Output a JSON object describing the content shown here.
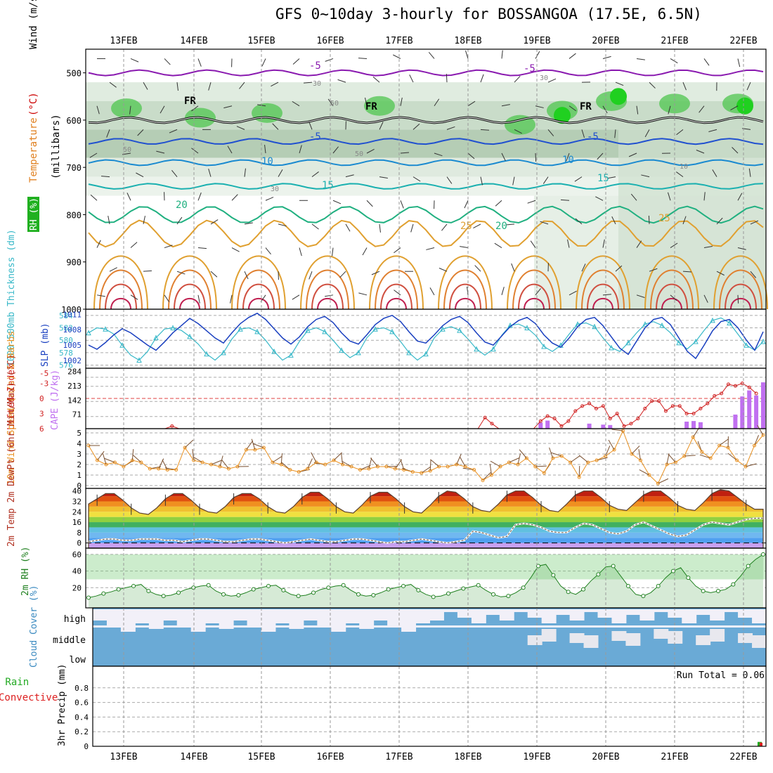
{
  "title": "GFS 0~10day 3-hourly for BOSSANGOA (17.5E, 6.5N)",
  "date_labels": [
    "13FEB",
    "14FEB",
    "15FEB",
    "16FEB",
    "17FEB",
    "18FEB",
    "19FEB",
    "20FEB",
    "21FEB",
    "22FEB"
  ],
  "run_total_text": "Run Total = 0.06",
  "chart_data": [
    {
      "type": "heatmap",
      "panel": "upper-air",
      "ylabel_parts": [
        {
          "text": "Wind (m/s)",
          "color": "#000000"
        },
        {
          "text": "(°C)",
          "color": "#cc0000"
        },
        {
          "text": "Temperature",
          "color": "#e08020"
        },
        {
          "text": "RH (%)",
          "color": "#22aa22"
        },
        {
          "text": "(millibars)",
          "color": "#000000"
        }
      ],
      "yticks": [
        "500",
        "600",
        "700",
        "800",
        "900",
        "1000"
      ],
      "ylim": [
        450,
        1000
      ],
      "contour_labels": [
        "-5",
        "-5",
        "FR",
        "FR",
        "FR",
        "-5",
        "-5",
        "10",
        "10",
        "15",
        "15",
        "20",
        "20",
        "25",
        "25",
        "10",
        "30",
        "30",
        "30",
        "50",
        "50",
        "50"
      ],
      "isotherms": [
        {
          "label": "-5",
          "color": "#8a1ab0",
          "pressure": 500
        },
        {
          "label": "FR",
          "color": "#000000",
          "pressure": 600
        },
        {
          "label": "-5",
          "color": "#2050d0",
          "pressure": 645
        },
        {
          "label": "10",
          "color": "#1a8ad0",
          "pressure": 690
        },
        {
          "label": "15",
          "color": "#1ab0b0",
          "pressure": 740
        },
        {
          "label": "20",
          "color": "#20b080",
          "pressure": 800
        },
        {
          "label": "25",
          "color": "#e0a030",
          "pressure": 840
        }
      ]
    },
    {
      "type": "line",
      "panel": "thickness-slp",
      "ylabel_left": "1000-500mb Thickness (dm)",
      "ylabel_right": "SLP (mb)",
      "yticks_thickness": [
        "584",
        "582",
        "580",
        "578",
        "576"
      ],
      "yticks_slp": [
        "1011",
        "1008",
        "1005",
        "1002"
      ],
      "series": [
        {
          "name": "1000-500mb Thickness (dm)",
          "color": "#38b8c8",
          "values": [
            581.2,
            582.0,
            581.8,
            581.0,
            579.2,
            577.6,
            576.8,
            578.2,
            580.4,
            581.8,
            582.0,
            581.6,
            580.6,
            579.4,
            577.8,
            576.8,
            578.0,
            580.2,
            581.8,
            582.0,
            581.4,
            580.0,
            578.2,
            576.8,
            577.6,
            579.8,
            581.6,
            582.0,
            581.4,
            580.0,
            578.4,
            577.2,
            578.0,
            580.4,
            581.8,
            582.0,
            581.4,
            579.8,
            578.0,
            576.8,
            577.8,
            580.4,
            581.8,
            582.2,
            581.6,
            580.2,
            578.6,
            577.6,
            578.6,
            580.8,
            582.4,
            582.6,
            582.0,
            580.8,
            579.0,
            578.2,
            579.2,
            581.0,
            582.6,
            582.8,
            582.2,
            580.4,
            578.8,
            578.2,
            579.6,
            581.2,
            582.6,
            583.0,
            582.4,
            581.2,
            579.6,
            578.6,
            579.8,
            581.6,
            583.2,
            583.6,
            582.8,
            581.0,
            579.2,
            578.4,
            579.8
          ]
        },
        {
          "name": "SLP (mb)",
          "color": "#1a40c0",
          "values": [
            1005.0,
            1004.2,
            1005.5,
            1007.0,
            1008.2,
            1007.4,
            1006.2,
            1005.0,
            1004.0,
            1005.6,
            1007.4,
            1008.8,
            1010.2,
            1009.2,
            1007.8,
            1006.4,
            1005.4,
            1007.4,
            1009.2,
            1010.4,
            1011.2,
            1010.0,
            1008.2,
            1006.4,
            1005.2,
            1006.6,
            1008.6,
            1010.0,
            1010.6,
            1009.4,
            1007.4,
            1005.8,
            1005.2,
            1007.0,
            1009.0,
            1010.2,
            1010.8,
            1009.6,
            1007.6,
            1005.8,
            1005.4,
            1007.0,
            1008.8,
            1010.0,
            1010.6,
            1009.4,
            1007.4,
            1005.6,
            1005.0,
            1006.8,
            1008.6,
            1009.8,
            1010.4,
            1009.2,
            1007.0,
            1005.4,
            1004.6,
            1006.4,
            1008.6,
            1010.0,
            1010.4,
            1008.8,
            1006.6,
            1004.4,
            1003.2,
            1005.8,
            1008.4,
            1010.0,
            1010.4,
            1009.0,
            1006.4,
            1003.8,
            1002.4,
            1005.0,
            1007.8,
            1009.6,
            1010.0,
            1008.4,
            1006.0,
            1004.0,
            1007.6
          ]
        }
      ]
    },
    {
      "type": "bar",
      "panel": "cape-li",
      "ylabel_left": "Lifted Index",
      "ylabel_right": "CAPE (J/kg)",
      "yticks_li": [
        "-5",
        "-3",
        "0",
        "3",
        "6"
      ],
      "yticks_cape": [
        "284",
        "213",
        "142",
        "71"
      ],
      "series": [
        {
          "name": "CAPE (J/kg)",
          "color": "#c070f0",
          "values": [
            0,
            0,
            0,
            0,
            0,
            0,
            0,
            0,
            0,
            0,
            0,
            0,
            0,
            0,
            0,
            0,
            0,
            0,
            0,
            0,
            0,
            0,
            0,
            0,
            0,
            0,
            0,
            0,
            0,
            0,
            0,
            0,
            0,
            0,
            0,
            0,
            0,
            0,
            0,
            0,
            0,
            0,
            0,
            0,
            0,
            0,
            0,
            0,
            0,
            0,
            0,
            0,
            0,
            0,
            0,
            0,
            0,
            0,
            0,
            0,
            0,
            0,
            0,
            0,
            0,
            30,
            40,
            0,
            0,
            0,
            0,
            0,
            25,
            0,
            20,
            18,
            0,
            0,
            0,
            0,
            0,
            0,
            0,
            0,
            0,
            0,
            35,
            38,
            32,
            0,
            0,
            0,
            0,
            70,
            160,
            190,
            165,
            230
          ]
        },
        {
          "name": "Lifted Index",
          "color": "#d02020",
          "values": [
            6,
            6,
            6,
            6,
            6,
            6,
            6,
            6,
            6,
            6,
            6,
            6,
            5.5,
            6,
            6,
            6,
            6,
            6,
            6,
            6,
            6,
            6,
            6,
            6,
            6,
            6,
            6,
            6,
            6,
            6,
            6,
            6,
            6,
            6,
            6,
            6,
            6,
            6,
            6,
            6,
            6,
            6,
            6,
            6,
            6,
            6,
            6,
            6,
            6,
            6,
            6,
            6,
            6,
            6,
            6,
            6,
            6,
            3.8,
            5,
            6,
            6,
            6,
            6,
            6,
            6,
            4.5,
            3.5,
            4,
            5.5,
            4.5,
            2.5,
            1.5,
            1.0,
            2.0,
            1.5,
            4.0,
            3.0,
            5.5,
            5,
            4,
            2,
            0.5,
            0.5,
            2.5,
            1.5,
            1.5,
            3,
            3,
            2,
            1,
            -0.5,
            -1,
            -2.8,
            -2.5,
            -3,
            -2.2,
            -1
          ]
        }
      ]
    },
    {
      "type": "line",
      "panel": "wind10m",
      "ylabel": "10m Wind Speed (m/s) & Barbs",
      "yticks": [
        "5",
        "4",
        "3",
        "2",
        "1",
        "0"
      ],
      "ylim": [
        0,
        5
      ],
      "series": [
        {
          "name": "10m Wind Speed",
          "color": "#e89020",
          "values": [
            3.8,
            2.4,
            2.0,
            2.2,
            1.8,
            2.4,
            2.2,
            1.6,
            1.6,
            1.5,
            1.5,
            3.6,
            2.4,
            2.2,
            2.0,
            1.8,
            1.6,
            1.8,
            3.4,
            3.4,
            3.6,
            2.2,
            2.0,
            1.5,
            1.3,
            1.6,
            2.2,
            2.0,
            2.4,
            2.0,
            1.8,
            1.5,
            1.6,
            1.8,
            1.8,
            1.6,
            1.5,
            1.3,
            1.2,
            1.4,
            1.8,
            1.8,
            2.0,
            1.8,
            1.5,
            0.5,
            1.0,
            1.8,
            2.2,
            2.0,
            2.6,
            1.8,
            1.2,
            2.6,
            2.8,
            2.2,
            0.8,
            2.2,
            2.4,
            2.8,
            3.4,
            5.2,
            3.0,
            2.4,
            1.0,
            0.2,
            2.0,
            2.2,
            2.8,
            4.6,
            3.2,
            2.6,
            3.8,
            3.6,
            2.4,
            1.8,
            3.8,
            4.8
          ]
        }
      ]
    },
    {
      "type": "area",
      "panel": "temp2m",
      "ylabel": "2m Temp 2m DewPt (6hr Min/Max) (°C)",
      "yticks": [
        "40",
        "32",
        "24",
        "16",
        "8",
        "0"
      ],
      "ylim": [
        -4,
        42
      ],
      "series": [
        {
          "name": "2m Temp",
          "color": "#c02020",
          "values": [
            30,
            34,
            38,
            38,
            33,
            27,
            23,
            22,
            27,
            34,
            38,
            38,
            33,
            27,
            24,
            23,
            28,
            35,
            38,
            38,
            34,
            28,
            24,
            23,
            28,
            35,
            39,
            39,
            34,
            28,
            24,
            23,
            29,
            36,
            39,
            39,
            34,
            28,
            24,
            23,
            29,
            36,
            40,
            39,
            34,
            28,
            25,
            24,
            30,
            37,
            40,
            40,
            35,
            29,
            25,
            24,
            30,
            37,
            40,
            40,
            35,
            29,
            26,
            25,
            31,
            37,
            40,
            40,
            35,
            29,
            26,
            25,
            31,
            38,
            41,
            40,
            35,
            30,
            26,
            26
          ]
        },
        {
          "name": "2m DewPt",
          "color": "#7a6a5a",
          "values": [
            1,
            2,
            3,
            3,
            2,
            2,
            3,
            3,
            3,
            2,
            2,
            1,
            2,
            3,
            3,
            2,
            1,
            1,
            2,
            3,
            3,
            2,
            1,
            0,
            1,
            2,
            3,
            2,
            1,
            1,
            2,
            3,
            3,
            2,
            1,
            0,
            1,
            1,
            2,
            3,
            2,
            1,
            0,
            1,
            2,
            9,
            8,
            6,
            4,
            5,
            14,
            15,
            14,
            12,
            9,
            8,
            8,
            12,
            15,
            14,
            11,
            8,
            7,
            9,
            14,
            16,
            13,
            10,
            7,
            5,
            6,
            10,
            14,
            16,
            15,
            14,
            16,
            18,
            19,
            19
          ]
        }
      ]
    },
    {
      "type": "area",
      "panel": "rh2m",
      "ylabel": "2m RH (%)",
      "yticks": [
        "60",
        "40",
        "20"
      ],
      "ylim": [
        0,
        65
      ],
      "series": [
        {
          "name": "2m RH",
          "color": "#208020",
          "values": [
            8,
            10,
            13,
            15,
            18,
            20,
            22,
            24,
            16,
            12,
            10,
            11,
            14,
            18,
            20,
            22,
            23,
            16,
            12,
            10,
            11,
            14,
            18,
            20,
            22,
            23,
            17,
            12,
            10,
            11,
            14,
            18,
            20,
            22,
            23,
            17,
            12,
            10,
            11,
            14,
            18,
            20,
            22,
            24,
            17,
            12,
            9,
            10,
            13,
            16,
            19,
            21,
            23,
            17,
            12,
            9,
            10,
            14,
            20,
            32,
            46,
            48,
            35,
            22,
            15,
            12,
            18,
            28,
            36,
            45,
            46,
            34,
            22,
            12,
            10,
            14,
            22,
            32,
            40,
            44,
            32,
            22,
            16,
            14,
            16,
            18,
            24,
            34,
            46,
            54,
            60
          ]
        }
      ]
    },
    {
      "type": "heatmap",
      "panel": "cloud",
      "ylabel": "Cloud Cover (%)",
      "rows": [
        "high",
        "middle",
        "low"
      ]
    },
    {
      "type": "bar",
      "panel": "precip",
      "ylabel_left": "Total / Rain",
      "ylabel_left2": "Convective",
      "ylabel": "3hr Precip (mm)",
      "yticks": [
        "0.8",
        "0.6",
        "0.4",
        "0.2",
        "0"
      ],
      "ylim": [
        0,
        1.0
      ],
      "series": [
        {
          "name": "Total / Rain",
          "color": "#22aa22",
          "values": [
            0,
            0,
            0,
            0,
            0,
            0,
            0,
            0,
            0,
            0,
            0,
            0,
            0,
            0,
            0,
            0,
            0,
            0,
            0,
            0,
            0,
            0,
            0,
            0,
            0,
            0,
            0,
            0,
            0,
            0,
            0,
            0,
            0,
            0,
            0,
            0,
            0,
            0,
            0,
            0,
            0,
            0,
            0,
            0,
            0,
            0,
            0,
            0,
            0,
            0,
            0,
            0,
            0,
            0,
            0,
            0,
            0,
            0,
            0,
            0,
            0,
            0,
            0,
            0,
            0,
            0,
            0,
            0,
            0,
            0,
            0,
            0,
            0,
            0,
            0,
            0,
            0,
            0,
            0.06
          ]
        },
        {
          "name": "Convective",
          "color": "#dd2020",
          "values": [
            0,
            0,
            0,
            0,
            0,
            0,
            0,
            0,
            0,
            0,
            0,
            0,
            0,
            0,
            0,
            0,
            0,
            0,
            0,
            0,
            0,
            0,
            0,
            0,
            0,
            0,
            0,
            0,
            0,
            0,
            0,
            0,
            0,
            0,
            0,
            0,
            0,
            0,
            0,
            0,
            0,
            0,
            0,
            0,
            0,
            0,
            0,
            0,
            0,
            0,
            0,
            0,
            0,
            0,
            0,
            0,
            0,
            0,
            0,
            0,
            0,
            0,
            0,
            0,
            0,
            0,
            0,
            0,
            0,
            0,
            0,
            0,
            0,
            0,
            0,
            0,
            0,
            0,
            0.05
          ]
        }
      ]
    }
  ]
}
